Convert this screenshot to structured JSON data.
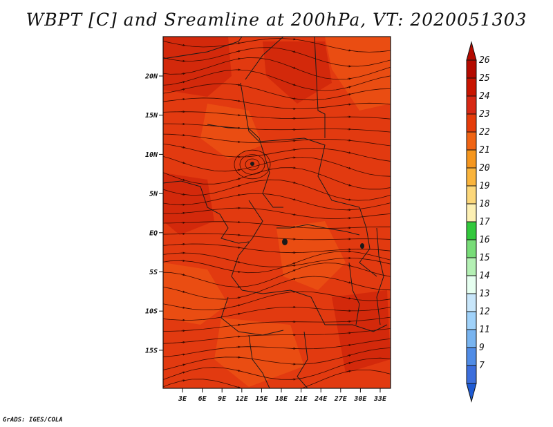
{
  "title": "WBPT [C] and Sreamline at 200hPa, VT: 2020051303",
  "credit": "GrADS: IGES/COLA",
  "map": {
    "lat_ticks": [
      "20N",
      "15N",
      "10N",
      "5N",
      "EQ",
      "5S",
      "10S",
      "15S"
    ],
    "lon_ticks": [
      "3E",
      "6E",
      "9E",
      "12E",
      "15E",
      "18E",
      "21E",
      "24E",
      "27E",
      "30E",
      "33E"
    ],
    "field_colors": {
      "base": "#e23a10",
      "darker": "#c91e08",
      "lighter": "#f05a14"
    },
    "streamline_color": "#3a0a00",
    "border_color": "#1a1a1a"
  },
  "colorbar": {
    "levels": [
      {
        "label": "26",
        "color": "#b40a00"
      },
      {
        "label": "25",
        "color": "#c81400"
      },
      {
        "label": "24",
        "color": "#d72814"
      },
      {
        "label": "23",
        "color": "#e53c0a"
      },
      {
        "label": "22",
        "color": "#f06414"
      },
      {
        "label": "21",
        "color": "#f5961e"
      },
      {
        "label": "20",
        "color": "#fab43c"
      },
      {
        "label": "19",
        "color": "#fcd77a"
      },
      {
        "label": "18",
        "color": "#fdf0b4"
      },
      {
        "label": "17",
        "color": "#32c83c"
      },
      {
        "label": "16",
        "color": "#78dc78"
      },
      {
        "label": "15",
        "color": "#b4f0b4"
      },
      {
        "label": "14",
        "color": "#e6fff0"
      },
      {
        "label": "13",
        "color": "#c8e6fa"
      },
      {
        "label": "12",
        "color": "#a0d2fa"
      },
      {
        "label": "11",
        "color": "#78b4f0"
      },
      {
        "label": "9",
        "color": "#508ce6"
      },
      {
        "label": "7",
        "color": "#3c6edc"
      }
    ],
    "bottom_arrow_color": "#1e5ad2"
  }
}
